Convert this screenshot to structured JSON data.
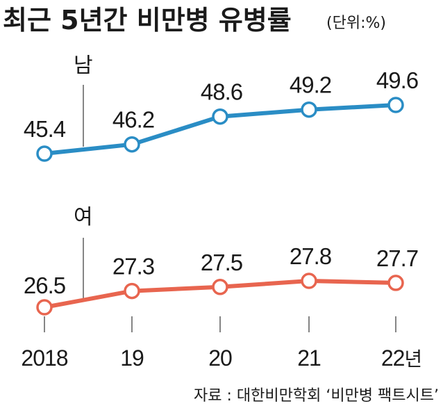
{
  "chart_data": {
    "type": "line",
    "title": "최근 5년간 비만병 유병률",
    "unit": "(단위:%)",
    "categories": [
      "2018",
      "19",
      "20",
      "21",
      "22"
    ],
    "category_suffix": "년",
    "series": [
      {
        "name": "남",
        "values": [
          45.4,
          46.2,
          48.6,
          49.2,
          49.6
        ],
        "color": "#2a8dc5"
      },
      {
        "name": "여",
        "values": [
          26.5,
          27.3,
          27.5,
          27.8,
          27.7
        ],
        "color": "#e8654f"
      }
    ],
    "grid": false,
    "legend": "inline-left",
    "source": "자료 : 대한비만학회 ‘비만병 팩트시트’"
  }
}
